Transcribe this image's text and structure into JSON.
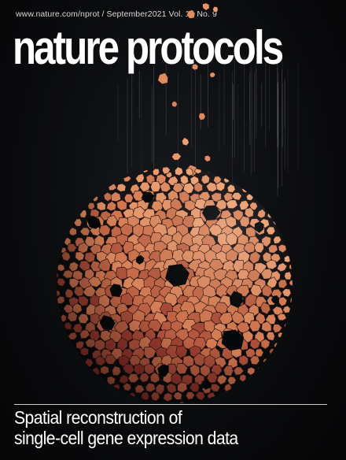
{
  "cover": {
    "meta_line": "www.nature.com/nprot / September2021 Vol. 16 No. 9",
    "masthead": "nature protocols",
    "headline_line1": "Spatial reconstruction of",
    "headline_line2": "single-cell gene expression data"
  },
  "art": {
    "subject": "sphere of polygonal cells with falling cell fragments",
    "colors": {
      "background": "#07080a",
      "cell_light": "#f2a778",
      "cell_mid": "#d07650",
      "cell_dark": "#8e2e28",
      "cell_edge": "#2a1410",
      "hole": "#07080a"
    }
  }
}
